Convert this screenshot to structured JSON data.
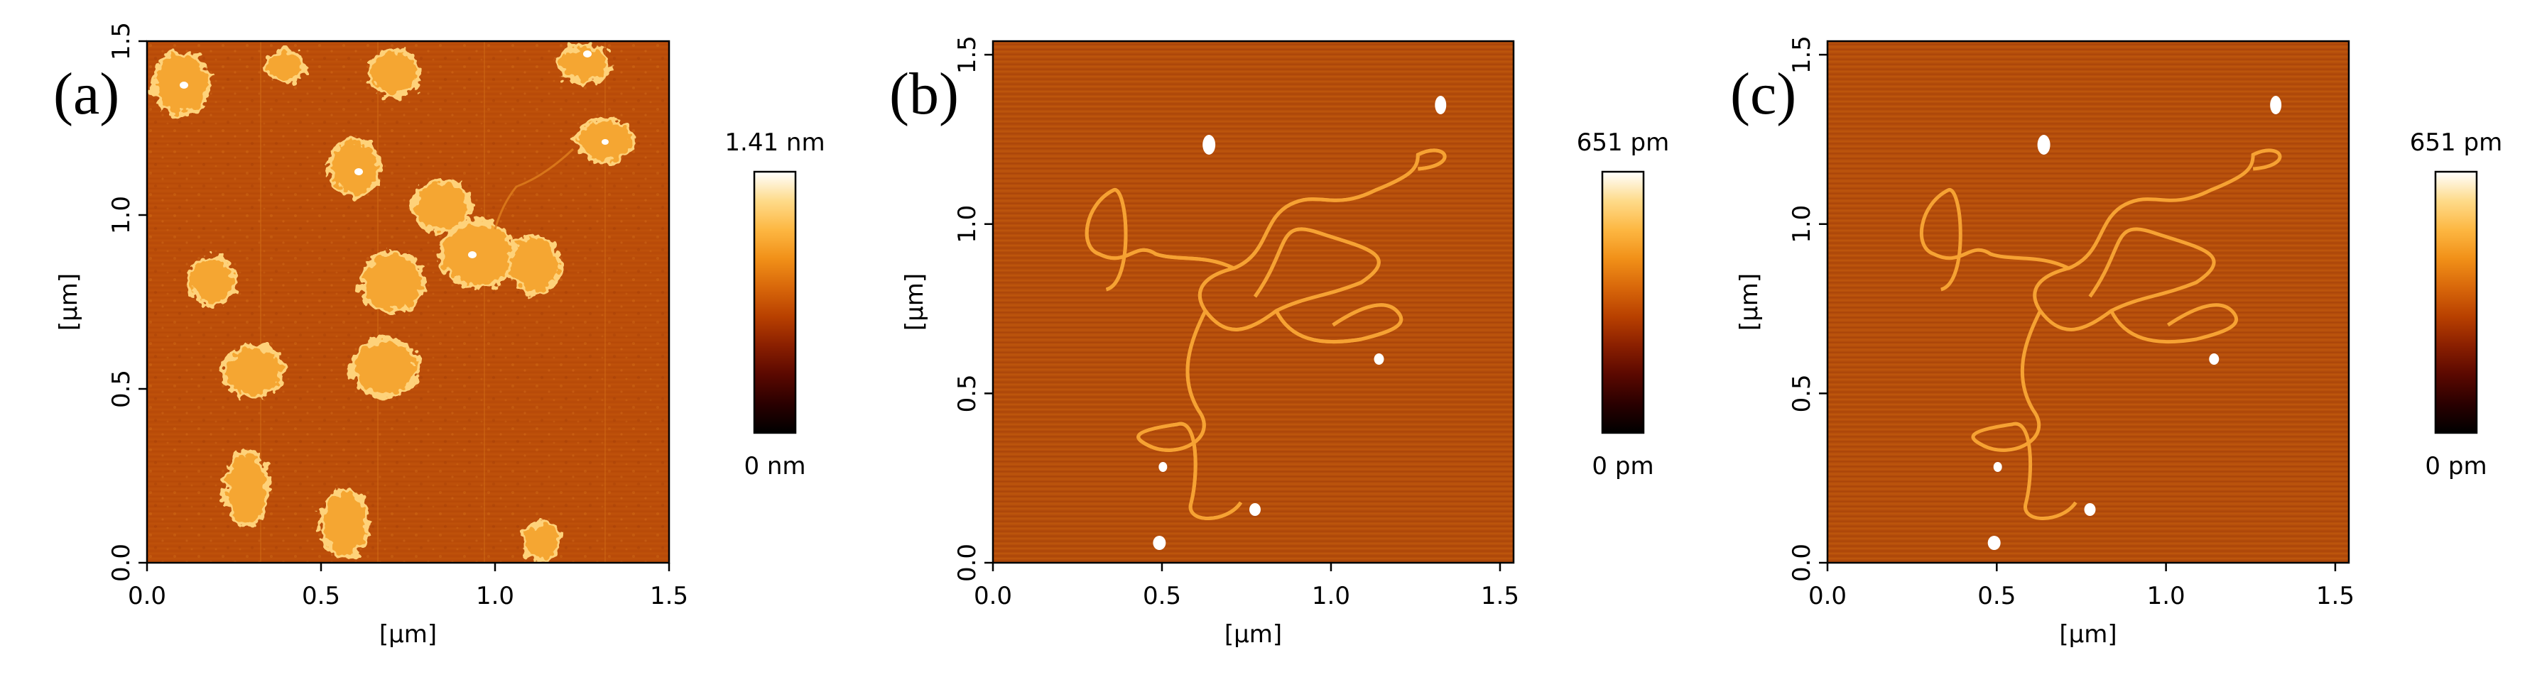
{
  "colors": {
    "colormap": [
      "#000000",
      "#2a0000",
      "#5a0800",
      "#8a1f00",
      "#b84000",
      "#d8670a",
      "#f19018",
      "#fdb742",
      "#fedb8a",
      "#ffffff"
    ],
    "image_base": "#b44a08",
    "background": "#ffffff"
  },
  "panels": [
    {
      "letter": "(a)",
      "xlabel": "[µm]",
      "ylabel": "[µm]",
      "xticks": [
        "0.0",
        "0.5",
        "1.0",
        "1.5"
      ],
      "yticks": [
        "0.0",
        "0.5",
        "1.0",
        "1.5"
      ],
      "xrange": [
        0,
        1.5
      ],
      "yrange": [
        0,
        1.5
      ],
      "colorbar": {
        "max_label": "1.41 nm",
        "min_label": "0 nm"
      }
    },
    {
      "letter": "(b)",
      "xlabel": "[µm]",
      "ylabel": "[µm]",
      "xticks": [
        "0.0",
        "0.5",
        "1.0",
        "1.5"
      ],
      "yticks": [
        "0.0",
        "0.5",
        "1.0",
        "1.5"
      ],
      "xrange": [
        0,
        1.54
      ],
      "yrange": [
        0,
        1.54
      ],
      "colorbar": {
        "max_label": "651 pm",
        "min_label": "0 pm"
      }
    },
    {
      "letter": "(c)",
      "xlabel": "[µm]",
      "ylabel": "[µm]",
      "xticks": [
        "0.0",
        "0.5",
        "1.0",
        "1.5"
      ],
      "yticks": [
        "0.0",
        "0.5",
        "1.0",
        "1.5"
      ],
      "xrange": [
        0,
        1.54
      ],
      "yrange": [
        0,
        1.54
      ],
      "colorbar": {
        "max_label": "651 pm",
        "min_label": "0 pm"
      }
    }
  ]
}
